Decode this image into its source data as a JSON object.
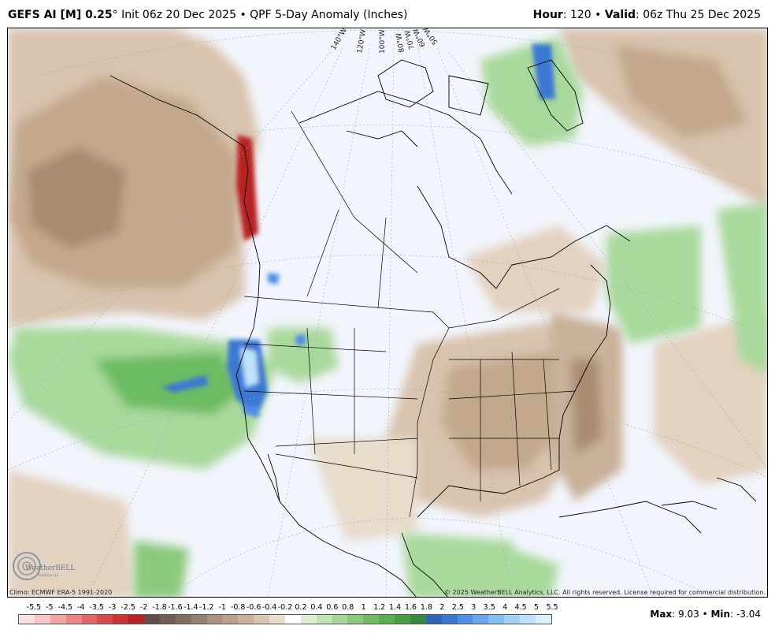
{
  "header": {
    "model": "GEFS AI [M] 0.25",
    "degree": "°",
    "init": "Init 06z 20 Dec 2025",
    "bullet": "•",
    "product": "QPF 5-Day Anomaly (Inches)",
    "hour_label": "Hour",
    "hour_value": ": 120",
    "valid_label": "Valid",
    "valid_value": ": 06z Thu 25 Dec 2025"
  },
  "map": {
    "longitude_labels": [
      "140°W",
      "120°W",
      "100°W",
      "80°W",
      "70°W",
      "60°W",
      "50°W"
    ],
    "logo_text": "WeatherBELL",
    "logo_subtext": "Analytics LLC"
  },
  "footer": {
    "climo": "Climo: ECMWF ERA-5 1991-2020",
    "copyright": "© 2025 WeatherBELL Analytics, LLC. All rights reserved. License required for commercial distribution.",
    "max_label": "Max",
    "max_value": ": 9.03",
    "min_label": "Min",
    "min_value": ": -3.04"
  },
  "legend": {
    "labels": [
      "-5.5",
      "-5",
      "-4.5",
      "-4",
      "-3.5",
      "-3",
      "-2.5",
      "-2",
      "-1.8",
      "-1.6",
      "-1.4",
      "-1.2",
      "-1",
      "-0.8",
      "-0.6",
      "-0.4",
      "-0.2",
      "0.2",
      "0.4",
      "0.6",
      "0.8",
      "1",
      "1.2",
      "1.4",
      "1.6",
      "1.8",
      "2",
      "2.5",
      "3",
      "3.5",
      "4",
      "4.5",
      "5",
      "5.5"
    ],
    "colors": [
      "#fde0e0",
      "#f9c4c4",
      "#f3a5a5",
      "#ec8585",
      "#e36666",
      "#d94a4a",
      "#cc3232",
      "#b82222",
      "#5e4f47",
      "#6f5e52",
      "#826e60",
      "#957f6e",
      "#a8917d",
      "#b9a28c",
      "#c9b39c",
      "#d8c6b0",
      "#e8dccb",
      "#ffffff",
      "#d9efd2",
      "#bfe3b4",
      "#a5d697",
      "#8bc97c",
      "#72bb64",
      "#5cad52",
      "#489c45",
      "#378a3b",
      "#2f62b8",
      "#3a78d4",
      "#4f8ee6",
      "#68a6ef",
      "#82bdf4",
      "#9fd0f7",
      "#bfe2fa",
      "#d9f1fd"
    ]
  }
}
